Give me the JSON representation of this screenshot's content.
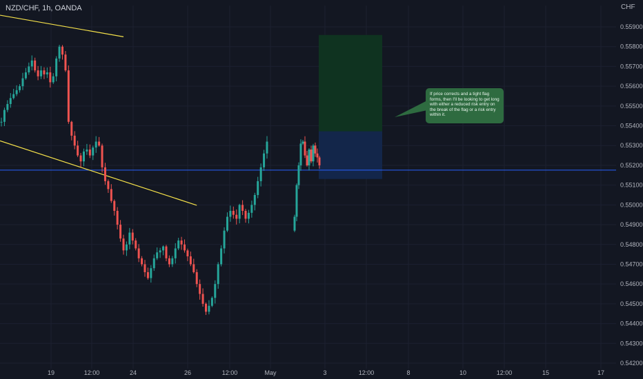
{
  "header": {
    "symbol_label": "NZD/CHF, 1h, OANDA",
    "currency": "CHF"
  },
  "note": {
    "text": "If price corrects and a tight flag forms, then I'll be looking to get long with either a reduced risk entry on the break of the flag or a risk entry within it."
  },
  "colors": {
    "background": "#131722",
    "up": "#26a69a",
    "down": "#ef5350",
    "trendline": "#f6e24a",
    "horizontal_line": "#2962ff",
    "target_zone": "#0f3320",
    "stop_zone": "#13264a",
    "note_bg": "#2e6b40"
  },
  "chart_data": {
    "type": "candlestick",
    "symbol": "NZD/CHF",
    "timeframe": "1h",
    "source": "OANDA",
    "quote_currency": "CHF",
    "x_ticks": [
      "19",
      "12:00",
      "24",
      "26",
      "12:00",
      "May",
      "3",
      "12:00",
      "8",
      "10",
      "12:00",
      "15",
      "17"
    ],
    "y_ticks": [
      "0.55900",
      "0.55800",
      "0.55700",
      "0.55600",
      "0.55500",
      "0.55400",
      "0.55300",
      "0.55200",
      "0.55100",
      "0.55000",
      "0.54900",
      "0.54800",
      "0.54700",
      "0.54600",
      "0.54500",
      "0.54400",
      "0.54300",
      "0.54200"
    ],
    "ylim": [
      0.5418,
      0.5595
    ],
    "horizontal_level": 0.55176,
    "position": {
      "entry": 0.55175,
      "stop": 0.55131,
      "target_top": 0.55859,
      "risk_top": 0.55372
    },
    "price_path": [
      0.5542,
      0.5548,
      0.5551,
      0.5554,
      0.5556,
      0.5558,
      0.556,
      0.5564,
      0.5567,
      0.557,
      0.5573,
      0.5568,
      0.5565,
      0.5568,
      0.5566,
      0.5567,
      0.5562,
      0.5565,
      0.5574,
      0.558,
      0.5576,
      0.5568,
      0.5542,
      0.5535,
      0.553,
      0.5525,
      0.5522,
      0.5527,
      0.5528,
      0.5525,
      0.5529,
      0.5532,
      0.553,
      0.5519,
      0.5512,
      0.5508,
      0.5502,
      0.5497,
      0.549,
      0.5483,
      0.5477,
      0.548,
      0.5486,
      0.5482,
      0.5478,
      0.5473,
      0.547,
      0.5466,
      0.5463,
      0.5468,
      0.5473,
      0.5476,
      0.5477,
      0.5479,
      0.5473,
      0.547,
      0.5473,
      0.5478,
      0.5482,
      0.548,
      0.5477,
      0.5474,
      0.547,
      0.5466,
      0.546,
      0.5455,
      0.545,
      0.5446,
      0.5449,
      0.5453,
      0.546,
      0.547,
      0.5478,
      0.5487,
      0.5494,
      0.5497,
      0.5495,
      0.5493,
      0.55,
      0.5497,
      0.5493,
      0.5496,
      0.55,
      0.5505,
      0.5512,
      0.5519,
      0.5526,
      0.5532,
      0.5494,
      0.551,
      0.552,
      0.5531,
      0.5532,
      0.5525,
      0.552,
      0.5528,
      0.5522,
      0.553,
      0.5526,
      0.5524,
      0.552
    ],
    "trendlines": [
      {
        "from": {
          "x_index": 0,
          "price": 0.55959
        },
        "to": {
          "x_index": 40,
          "price": 0.5585
        }
      },
      {
        "from": {
          "x_index": 0,
          "price": 0.55324
        },
        "to": {
          "x_index": 64,
          "price": 0.54998
        }
      }
    ]
  }
}
